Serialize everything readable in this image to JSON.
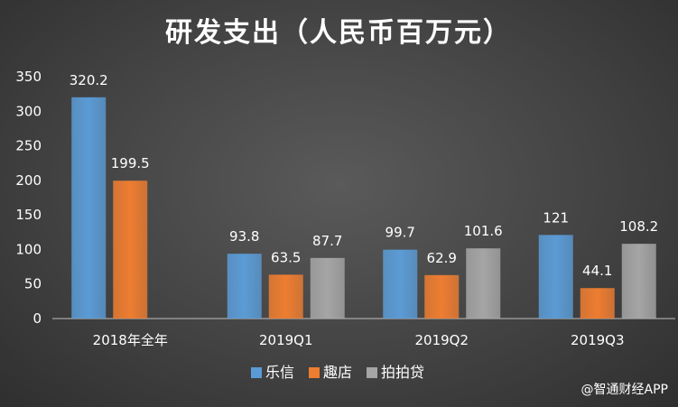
{
  "chart_data": {
    "type": "bar",
    "title": "研发支出（人民币百万元）",
    "categories": [
      "2018年全年",
      "2019Q1",
      "2019Q2",
      "2019Q3"
    ],
    "series": [
      {
        "name": "乐信",
        "color": "#5b9bd5",
        "values": [
          320.2,
          93.8,
          99.7,
          121
        ]
      },
      {
        "name": "趣店",
        "color": "#ed7d31",
        "values": [
          199.5,
          63.5,
          62.9,
          44.1
        ]
      },
      {
        "name": "拍拍贷",
        "color": "#a5a5a5",
        "values": [
          null,
          87.7,
          101.6,
          108.2
        ]
      }
    ],
    "ylim": [
      0,
      350
    ],
    "yticks": [
      0,
      50,
      100,
      150,
      200,
      250,
      300,
      350
    ],
    "legend_position": "bottom",
    "grid": false
  },
  "watermark": "@智通财经APP"
}
